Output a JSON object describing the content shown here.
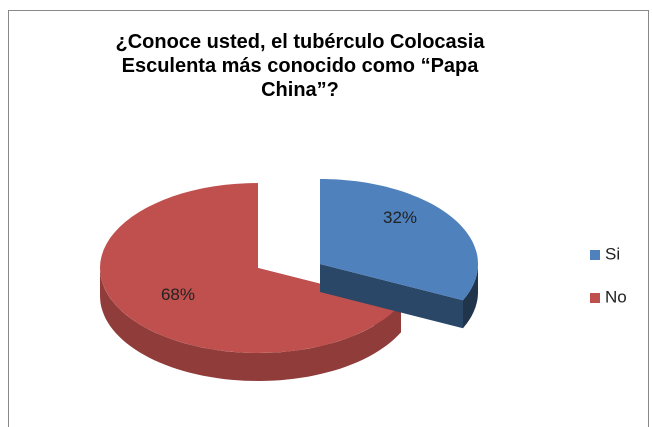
{
  "chart_data": {
    "type": "pie3d",
    "title": "¿Conoce usted, el tubérculo Colocasia Esculenta más conocido como “Papa China”?",
    "categories": [
      "Si",
      "No"
    ],
    "values": [
      32,
      68
    ],
    "value_labels": [
      "32%",
      "68%"
    ],
    "colors": [
      "#4f81bd",
      "#c0504d"
    ],
    "legend": "right"
  }
}
